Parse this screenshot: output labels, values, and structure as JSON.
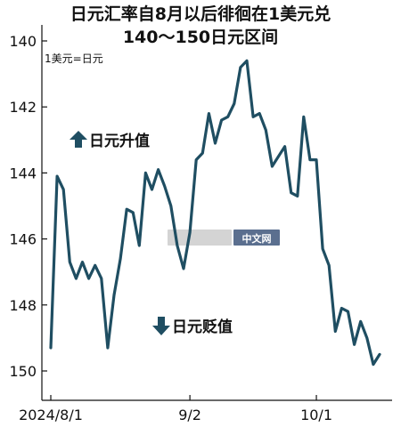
{
  "chart_data": {
    "type": "line",
    "title": "日元汇率自8月以后徘徊在1美元兑",
    "subtitle": "140～150日元区间",
    "unit_note": "1美元=日元",
    "annotations": {
      "up": "日元升值",
      "down": "日元贬值"
    },
    "watermark": "中文网",
    "y_reversed": true,
    "ylim": [
      139.5,
      150.5
    ],
    "yticks": [
      140,
      142,
      144,
      146,
      148,
      150
    ],
    "xticks": [
      {
        "label": "2024/8/1",
        "index": 0
      },
      {
        "label": "9/2",
        "index": 22
      },
      {
        "label": "10/1",
        "index": 42
      }
    ],
    "grid": false,
    "color": "#1f4e62",
    "series": [
      {
        "values": [
          149.3,
          144.1,
          144.5,
          146.7,
          147.2,
          146.7,
          147.2,
          146.8,
          147.2,
          149.3,
          147.7,
          146.6,
          145.1,
          145.2,
          146.2,
          144.0,
          144.5,
          143.9,
          144.4,
          145.0,
          146.2,
          146.9,
          145.8,
          143.6,
          143.4,
          142.2,
          143.1,
          142.4,
          142.3,
          141.9,
          140.8,
          140.6,
          142.3,
          142.2,
          142.7,
          143.8,
          143.5,
          143.2,
          144.6,
          144.7,
          142.3,
          143.6,
          143.6,
          146.3,
          146.8,
          148.8,
          148.1,
          148.2,
          149.2,
          148.5,
          149.0,
          149.8,
          149.5
        ]
      }
    ]
  }
}
